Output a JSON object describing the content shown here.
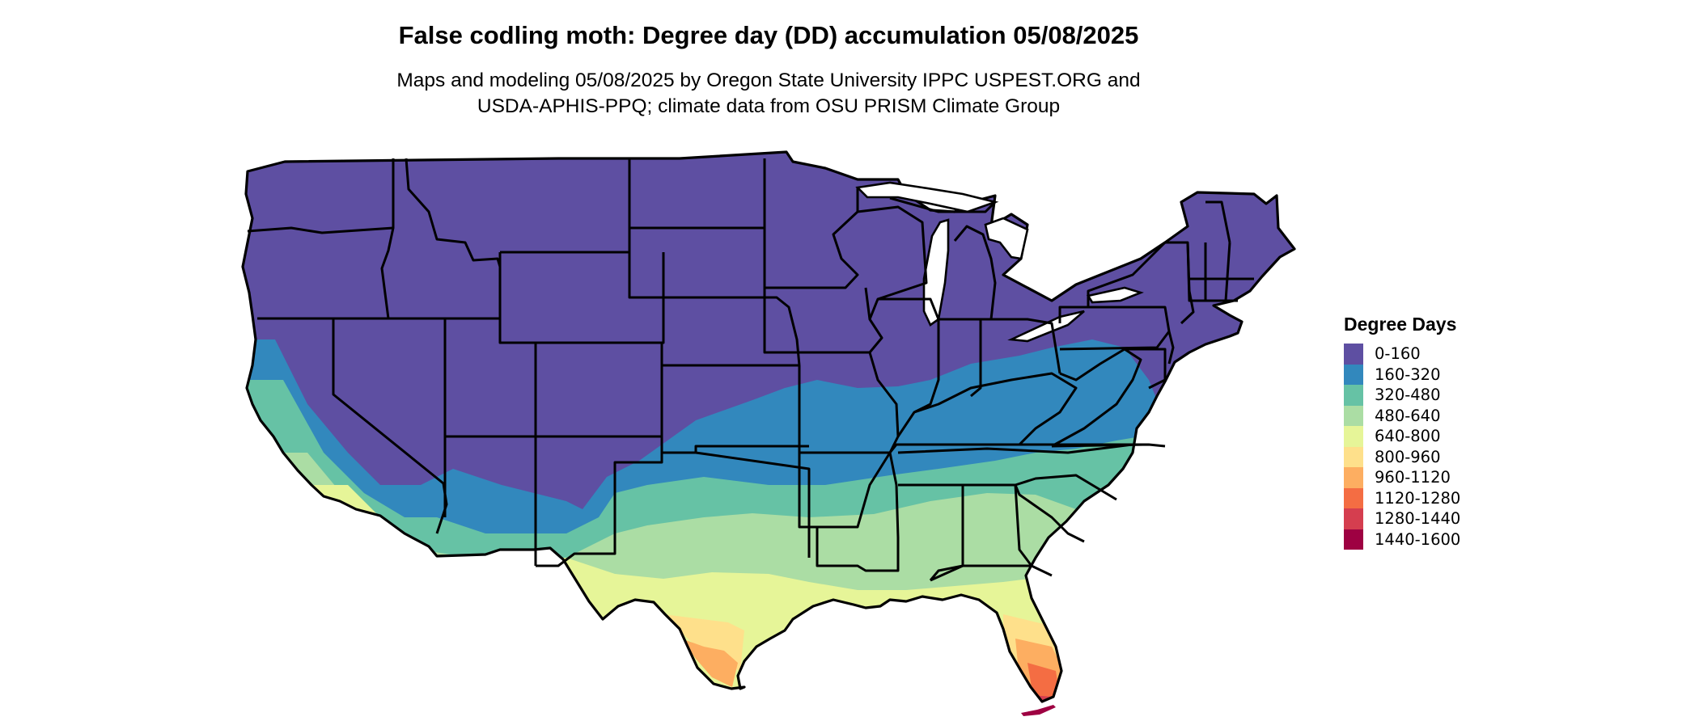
{
  "title": "False codling moth: Degree day (DD) accumulation 05/08/2025",
  "subtitle_line1": "Maps and modeling 05/08/2025 by Oregon State University IPPC USPEST.ORG and",
  "subtitle_line2": "USDA-APHIS-PPQ; climate data from OSU PRISM Climate Group",
  "legend": {
    "title": "Degree Days",
    "items": [
      {
        "label": "0-160",
        "color": "#5E4FA2"
      },
      {
        "label": "160-320",
        "color": "#3288BD"
      },
      {
        "label": "320-480",
        "color": "#66C2A5"
      },
      {
        "label": "480-640",
        "color": "#ABDDA4"
      },
      {
        "label": "640-800",
        "color": "#E6F598"
      },
      {
        "label": "800-960",
        "color": "#FEE08B"
      },
      {
        "label": "960-1120",
        "color": "#FDAE61"
      },
      {
        "label": "1120-1280",
        "color": "#F46D43"
      },
      {
        "label": "1280-1440",
        "color": "#D53E4F"
      },
      {
        "label": "1440-1600",
        "color": "#9E0142"
      }
    ]
  }
}
